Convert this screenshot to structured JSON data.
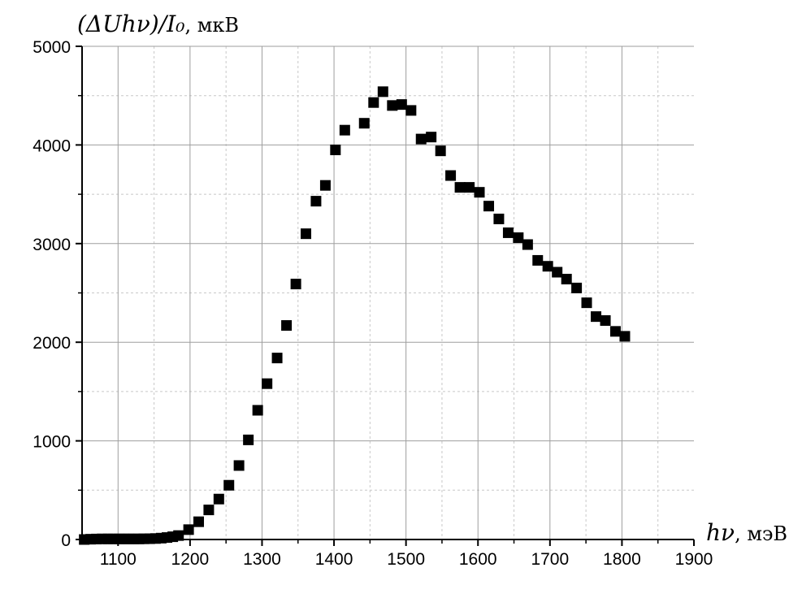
{
  "chart_data": {
    "type": "scatter",
    "xlabel": "hν, мэВ",
    "ylabel": "(ΔUhν)/I₀, мкВ",
    "xlabel_parts": {
      "math": "hν",
      "unit": ", мэВ"
    },
    "ylabel_parts": {
      "math": "(ΔUhν)/I₀",
      "unit": ", мкВ"
    },
    "xlim": [
      1050,
      1900
    ],
    "ylim": [
      0,
      5000
    ],
    "xticks": [
      1100,
      1200,
      1300,
      1400,
      1500,
      1600,
      1700,
      1800,
      1900
    ],
    "yticks": [
      0,
      1000,
      2000,
      3000,
      4000,
      5000
    ],
    "grid": true,
    "marker": "square",
    "marker_color": "#000000",
    "grid_major_color": "#9e9e9e",
    "grid_minor_color": "#c8c8c8",
    "series": [
      {
        "x": [
          1053,
          1062,
          1070,
          1078,
          1086,
          1093,
          1101,
          1108,
          1115,
          1122,
          1129,
          1136,
          1144,
          1152,
          1160,
          1168,
          1176,
          1184,
          1198,
          1212,
          1226,
          1240,
          1254,
          1268,
          1281,
          1294,
          1307,
          1321,
          1334,
          1347,
          1361,
          1375,
          1388,
          1402,
          1415,
          1442,
          1455,
          1468,
          1481,
          1494,
          1507,
          1521,
          1535,
          1548,
          1562,
          1575,
          1588,
          1602,
          1615,
          1629,
          1642,
          1656,
          1669,
          1683,
          1697,
          1710,
          1723,
          1737,
          1751,
          1764,
          1777,
          1791,
          1804
        ],
        "y": [
          0,
          3,
          5,
          6,
          6,
          6,
          6,
          6,
          6,
          6,
          6,
          7,
          8,
          10,
          14,
          20,
          28,
          40,
          100,
          180,
          300,
          410,
          550,
          750,
          1010,
          1310,
          1580,
          1840,
          2170,
          2590,
          3100,
          3430,
          3590,
          3950,
          4150,
          4220,
          4430,
          4540,
          4400,
          4410,
          4350,
          4060,
          4080,
          3940,
          3690,
          3570,
          3570,
          3520,
          3380,
          3250,
          3110,
          3060,
          2990,
          2830,
          2770,
          2710,
          2640,
          2550,
          2400,
          2260,
          2220,
          2110,
          2060
        ]
      }
    ]
  }
}
